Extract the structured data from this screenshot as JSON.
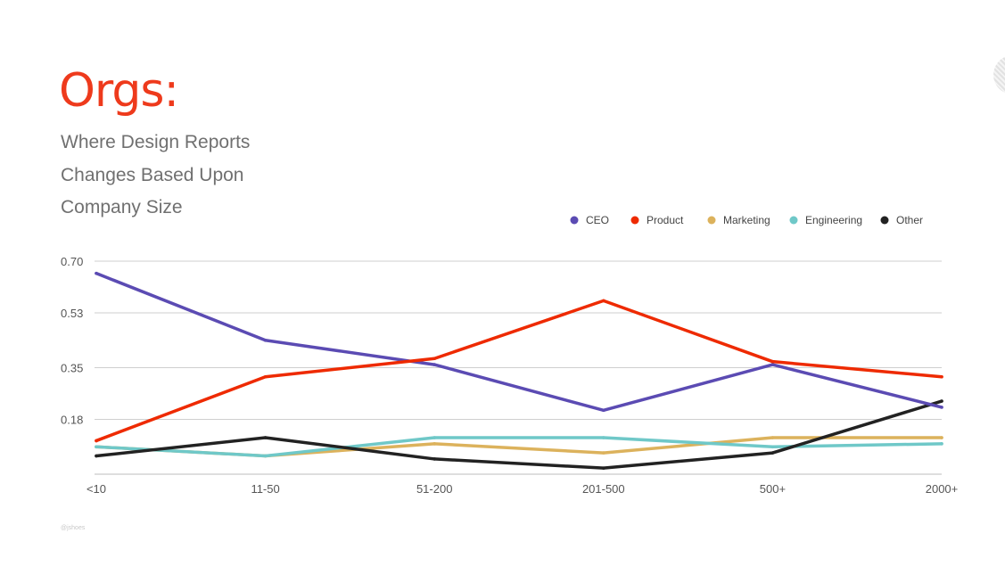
{
  "slide": {
    "title": "Orgs:",
    "subtitle_lines": [
      "Where Design Reports",
      "Changes Based Upon",
      "Company Size"
    ],
    "credit": "@jshoes"
  },
  "chart_data": {
    "type": "line",
    "categories": [
      "<10",
      "11-50",
      "51-200",
      "201-500",
      "500+",
      "2000+"
    ],
    "yticks": [
      "0.70",
      "0.53",
      "0.35",
      "0.18"
    ],
    "ylim": [
      0,
      0.7
    ],
    "grid": true,
    "legend_position": "top-right",
    "series": [
      {
        "name": "CEO",
        "color": "#5b4bb3",
        "values": [
          0.66,
          0.44,
          0.36,
          0.21,
          0.36,
          0.22
        ]
      },
      {
        "name": "Product",
        "color": "#ee2a00",
        "values": [
          0.11,
          0.32,
          0.38,
          0.57,
          0.37,
          0.32
        ]
      },
      {
        "name": "Marketing",
        "color": "#dcb25c",
        "values": [
          0.09,
          0.06,
          0.1,
          0.07,
          0.12,
          0.12
        ]
      },
      {
        "name": "Engineering",
        "color": "#6fc8c8",
        "values": [
          0.09,
          0.06,
          0.12,
          0.12,
          0.09,
          0.1
        ]
      },
      {
        "name": "Other",
        "color": "#222222",
        "values": [
          0.06,
          0.12,
          0.05,
          0.02,
          0.07,
          0.24
        ]
      }
    ]
  }
}
